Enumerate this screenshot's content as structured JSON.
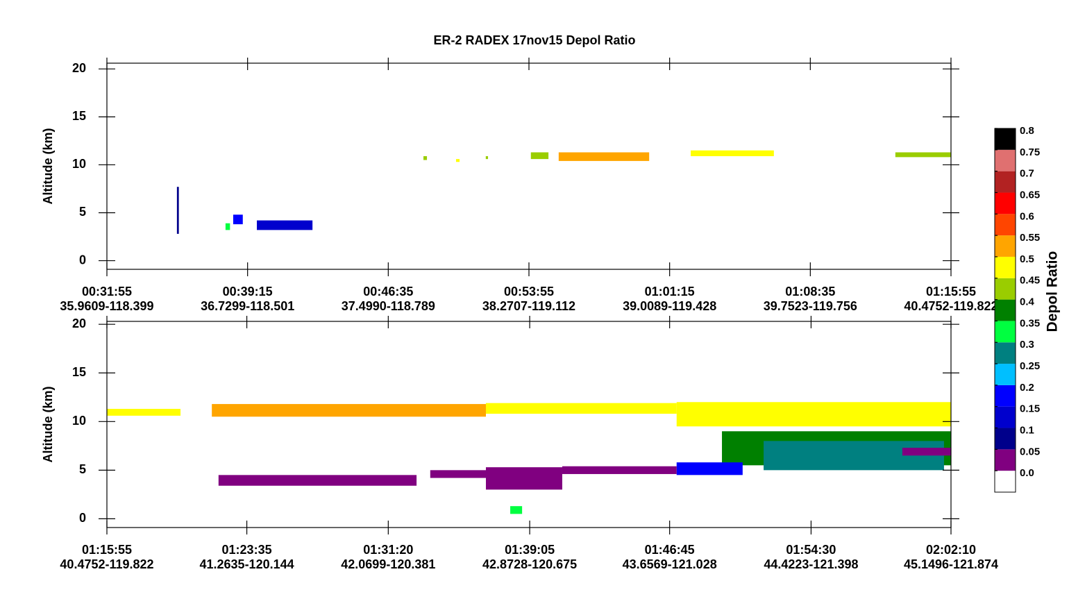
{
  "title": "ER-2 RADEX 17nov15 Depol Ratio",
  "colorbar": {
    "label": "Depol Ratio",
    "bins": [
      -0.05,
      0,
      0.05,
      0.1,
      0.15,
      0.2,
      0.25,
      0.3,
      0.35,
      0.4,
      0.45,
      0.5,
      0.55,
      0.6,
      0.65,
      0.7,
      0.75,
      0.8
    ],
    "colors": [
      "#ffffff",
      "#800080",
      "#00008b",
      "#0000cd",
      "#0000ff",
      "#00bfff",
      "#008080",
      "#00ff40",
      "#008000",
      "#9acd00",
      "#ffff00",
      "#ffa500",
      "#ff4500",
      "#ff0000",
      "#b22222",
      "#e07070",
      "#000000"
    ],
    "ticks": [
      {
        "value": 0,
        "label": "0.0"
      },
      0.05,
      0.1,
      0.15,
      0.2,
      0.25,
      0.3,
      0.35,
      0.4,
      0.45,
      0.5,
      0.55,
      0.6,
      0.65,
      0.7,
      0.75,
      0.8
    ]
  },
  "chart_data": [
    {
      "type": "curtain",
      "y_label": "Altitude (km)",
      "xlim": [
        1915,
        4555
      ],
      "xticks": [
        {
          "value": 1915,
          "label": "00:31:55",
          "sublabel": "35.9609-118.399"
        },
        {
          "value": 2355,
          "label": "00:39:15",
          "sublabel": "36.7299-118.501"
        },
        {
          "value": 2795,
          "label": "00:46:35",
          "sublabel": "37.4990-118.789"
        },
        {
          "value": 3235,
          "label": "00:53:55",
          "sublabel": "38.2707-119.112"
        },
        {
          "value": 3675,
          "label": "01:01:15",
          "sublabel": "39.0089-119.428"
        },
        {
          "value": 4115,
          "label": "01:08:35",
          "sublabel": "39.7523-119.756"
        },
        {
          "value": 4555,
          "label": "01:15:55",
          "sublabel": "40.4752-119.822"
        }
      ],
      "ylim": [
        -0.9,
        20.6
      ],
      "yticks": [
        0,
        5,
        10,
        15,
        20
      ],
      "features": [
        {
          "x": [
            2905,
            2916
          ],
          "alt": [
            10.5,
            10.9
          ],
          "value": 0.42
        },
        {
          "x": [
            3007,
            3018
          ],
          "alt": [
            10.3,
            10.6
          ],
          "value": 0.47
        },
        {
          "x": [
            3100,
            3107
          ],
          "alt": [
            10.6,
            10.9
          ],
          "value": 0.42
        },
        {
          "x": [
            3241,
            3296
          ],
          "alt": [
            10.6,
            11.3
          ],
          "value": 0.42
        },
        {
          "x": [
            3328,
            3611
          ],
          "alt": [
            10.4,
            11.3
          ],
          "value": 0.52
        },
        {
          "x": [
            3741,
            4001
          ],
          "alt": [
            10.9,
            11.5
          ],
          "value": 0.47
        },
        {
          "x": [
            4381,
            4555
          ],
          "alt": [
            10.8,
            11.3
          ],
          "value": 0.42
        },
        {
          "x": [
            2134,
            2140
          ],
          "alt": [
            2.8,
            7.7
          ],
          "value": 0.07
        },
        {
          "x": [
            2286,
            2300
          ],
          "alt": [
            3.2,
            3.9
          ],
          "value": 0.32
        },
        {
          "x": [
            2310,
            2340
          ],
          "alt": [
            3.8,
            4.8
          ],
          "value": 0.17
        },
        {
          "x": [
            2384,
            2558
          ],
          "alt": [
            3.2,
            4.2
          ],
          "value": 0.12
        }
      ]
    },
    {
      "type": "curtain",
      "y_label": "Altitude (km)",
      "xlim": [
        4555,
        7330
      ],
      "xticks": [
        {
          "value": 4555,
          "label": "01:15:55",
          "sublabel": "40.4752-119.822"
        },
        {
          "value": 5015,
          "label": "01:23:35",
          "sublabel": "41.2635-120.144"
        },
        {
          "value": 5480,
          "label": "01:31:20",
          "sublabel": "42.0699-120.381"
        },
        {
          "value": 5945,
          "label": "01:39:05",
          "sublabel": "42.8728-120.675"
        },
        {
          "value": 6405,
          "label": "01:46:45",
          "sublabel": "43.6569-121.028"
        },
        {
          "value": 6870,
          "label": "01:54:30",
          "sublabel": "44.4223-121.398"
        },
        {
          "value": 7330,
          "label": "02:02:10",
          "sublabel": "45.1496-121.874"
        }
      ],
      "ylim": [
        -0.9,
        20.3
      ],
      "yticks": [
        0,
        5,
        10,
        15,
        20
      ],
      "features": [
        {
          "x": [
            4555,
            4797
          ],
          "alt": [
            10.6,
            11.3
          ],
          "value": 0.47
        },
        {
          "x": [
            4900,
            5801
          ],
          "alt": [
            10.5,
            11.8
          ],
          "value": 0.52
        },
        {
          "x": [
            5801,
            6428
          ],
          "alt": [
            10.8,
            11.9
          ],
          "value": 0.47
        },
        {
          "x": [
            6428,
            7330
          ],
          "alt": [
            9.5,
            12
          ],
          "value": 0.47
        },
        {
          "x": [
            6577,
            7330
          ],
          "alt": [
            5.5,
            9
          ],
          "value": 0.37
        },
        {
          "x": [
            6714,
            7307
          ],
          "alt": [
            5,
            8
          ],
          "value": 0.27
        },
        {
          "x": [
            6428,
            6645
          ],
          "alt": [
            4.5,
            5.8
          ],
          "value": 0.17
        },
        {
          "x": [
            4922,
            5573
          ],
          "alt": [
            3.4,
            4.5
          ],
          "value": 0.02
        },
        {
          "x": [
            5618,
            5801
          ],
          "alt": [
            4.2,
            5
          ],
          "value": 0.02
        },
        {
          "x": [
            5801,
            6052
          ],
          "alt": [
            3,
            5.3
          ],
          "value": 0.02
        },
        {
          "x": [
            6052,
            6428
          ],
          "alt": [
            4.6,
            5.4
          ],
          "value": 0.02
        },
        {
          "x": [
            7170,
            7330
          ],
          "alt": [
            6.5,
            7.3
          ],
          "value": 0.02
        },
        {
          "x": [
            5881,
            5920
          ],
          "alt": [
            0.5,
            1.3
          ],
          "value": 0.32
        }
      ]
    }
  ]
}
